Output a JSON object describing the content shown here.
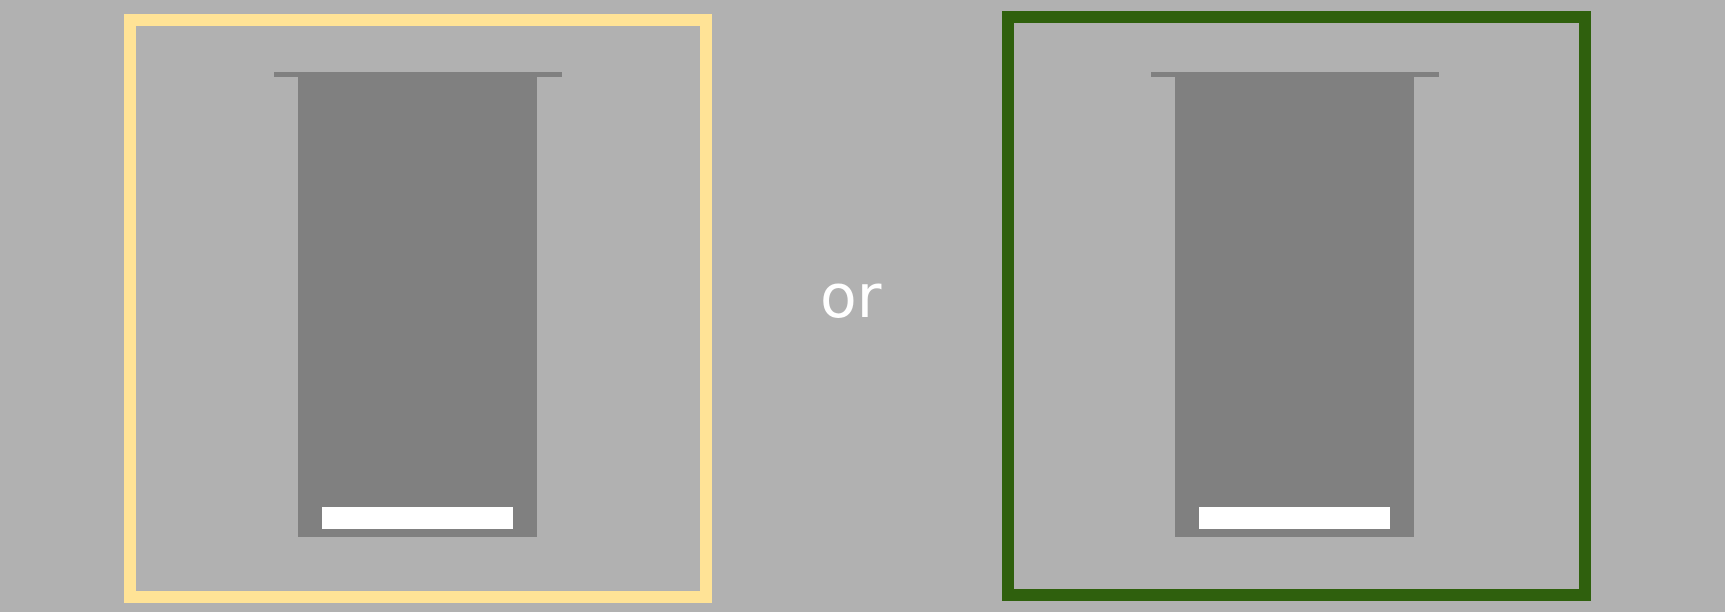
{
  "separator_text": "or",
  "colors": {
    "background": "#b1b1b1",
    "left_frame": "#ffe396",
    "right_frame": "#2f600d",
    "device": "#808080",
    "slot": "#ffffff"
  },
  "options": [
    {
      "id": "left",
      "device_icon": "gray-container-icon"
    },
    {
      "id": "right",
      "device_icon": "gray-container-icon"
    }
  ]
}
